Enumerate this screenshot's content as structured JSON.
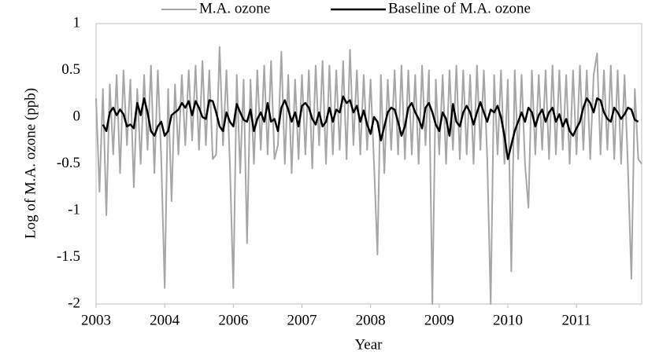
{
  "chart_data": {
    "type": "line",
    "x_label": "Year",
    "y_label": "Log of M.A. ozone (ppb)",
    "x": [
      0,
      0.05,
      0.1,
      0.15,
      0.2,
      0.25,
      0.3,
      0.35,
      0.4,
      0.45,
      0.5,
      0.55,
      0.6,
      0.65,
      0.7,
      0.75,
      0.8,
      0.85,
      0.9,
      0.95,
      1,
      1.05,
      1.1,
      1.15,
      1.2,
      1.25,
      1.3,
      1.35,
      1.4,
      1.45,
      1.5,
      1.55,
      1.6,
      1.65,
      1.7,
      1.75,
      1.8,
      1.85,
      1.9,
      1.95,
      2,
      2.05,
      2.1,
      2.15,
      2.2,
      2.25,
      2.3,
      2.35,
      2.4,
      2.45,
      2.5,
      2.55,
      2.6,
      2.65,
      2.7,
      2.75,
      2.8,
      2.85,
      2.9,
      2.95,
      3,
      3.05,
      3.1,
      3.15,
      3.2,
      3.25,
      3.3,
      3.35,
      3.4,
      3.45,
      3.5,
      3.55,
      3.6,
      3.65,
      3.7,
      3.75,
      3.8,
      3.85,
      3.9,
      3.95,
      4,
      4.05,
      4.1,
      4.15,
      4.2,
      4.25,
      4.3,
      4.35,
      4.4,
      4.45,
      4.5,
      4.55,
      4.6,
      4.65,
      4.7,
      4.75,
      4.8,
      4.85,
      4.9,
      4.95,
      5,
      5.05,
      5.1,
      5.15,
      5.2,
      5.25,
      5.3,
      5.35,
      5.4,
      5.45,
      5.5,
      5.55,
      5.6,
      5.65,
      5.7,
      5.75,
      5.8,
      5.85,
      5.9,
      5.95,
      6,
      6.05,
      6.1,
      6.15,
      6.2,
      6.25,
      6.3,
      6.35,
      6.4,
      6.45,
      6.5,
      6.55,
      6.6,
      6.65,
      6.7,
      6.75,
      6.8,
      6.85,
      6.9,
      6.95,
      7,
      7.05,
      7.1,
      7.15,
      7.2,
      7.25,
      7.3,
      7.35,
      7.4,
      7.45,
      7.5,
      7.55,
      7.6,
      7.65,
      7.7,
      7.75,
      7.8,
      7.85,
      7.9,
      7.95
    ],
    "series": [
      {
        "name": "M.A. ozone",
        "color": "#a6a6a6",
        "width": 2,
        "values": [
          0.2,
          -0.8,
          0.3,
          -1.05,
          0.35,
          -0.4,
          0.45,
          -0.6,
          0.5,
          -0.3,
          0.4,
          -0.75,
          0.3,
          -0.5,
          0.45,
          -0.35,
          0.55,
          -0.6,
          0.5,
          -0.45,
          -1.83,
          0.3,
          -0.9,
          0.35,
          -0.4,
          0.45,
          -0.3,
          0.5,
          -0.25,
          0.55,
          -0.35,
          0.6,
          -0.3,
          0.5,
          -0.45,
          -0.4,
          0.75,
          -0.3,
          0.5,
          -0.5,
          -1.83,
          0.45,
          -0.6,
          0.4,
          -1.35,
          0.4,
          -0.5,
          0.5,
          -0.35,
          0.55,
          -0.4,
          0.6,
          -0.45,
          -0.3,
          0.7,
          -0.5,
          0.45,
          -0.6,
          0.4,
          -0.45,
          0.45,
          -0.4,
          0.5,
          -0.55,
          0.55,
          -0.3,
          0.6,
          -0.5,
          0.55,
          -0.4,
          0.5,
          -0.35,
          0.6,
          -0.45,
          0.72,
          -0.3,
          0.5,
          -0.4,
          0.45,
          -0.35,
          0.4,
          -0.5,
          -1.47,
          0.45,
          -0.6,
          0.4,
          -0.35,
          0.5,
          -0.4,
          0.55,
          -0.45,
          0.5,
          -0.4,
          0.45,
          -0.5,
          0.55,
          -0.3,
          0.5,
          -2,
          0.4,
          -0.4,
          0.45,
          -0.5,
          0.5,
          -0.35,
          0.55,
          -0.45,
          0.5,
          -0.4,
          0.45,
          -0.5,
          0.55,
          -0.35,
          0.5,
          -0.45,
          -2,
          0.45,
          -0.4,
          0.5,
          -0.5,
          0.4,
          -1.65,
          0.5,
          -0.45,
          0.45,
          -0.5,
          -0.97,
          0.5,
          -0.4,
          0.45,
          -0.35,
          0.5,
          -0.45,
          0.55,
          -0.4,
          0.5,
          -0.35,
          0.45,
          -0.5,
          0.5,
          -0.4,
          0.55,
          -0.35,
          0.5,
          -0.45,
          0.45,
          0.68,
          -0.4,
          0.5,
          -0.35,
          0.55,
          -0.45,
          0.5,
          -0.5,
          0.45,
          -0.55,
          -1.73,
          0.3,
          -0.45,
          -0.5
        ]
      },
      {
        "name": "Baseline of M.A. ozone",
        "color": "#000000",
        "width": 2.5,
        "values": [
          null,
          null,
          -0.08,
          -0.15,
          0.05,
          0.1,
          0.02,
          0.08,
          0.03,
          -0.1,
          -0.08,
          -0.12,
          0.15,
          0.02,
          0.2,
          0.05,
          -0.15,
          -0.2,
          -0.1,
          -0.05,
          -0.2,
          -0.15,
          0.02,
          0.05,
          0.08,
          0.15,
          0.1,
          0.17,
          0.02,
          0.17,
          0.1,
          0,
          -0.02,
          0.18,
          0.17,
          0.05,
          -0.1,
          -0.15,
          0.05,
          -0.05,
          -0.1,
          0.14,
          0.05,
          -0.03,
          -0.05,
          0.08,
          -0.15,
          -0.02,
          0.05,
          -0.05,
          0.15,
          -0.05,
          -0.02,
          -0.15,
          0.1,
          0.18,
          0.08,
          -0.05,
          0.05,
          -0.1,
          0.12,
          0.15,
          0.1,
          -0.02,
          -0.08,
          0.05,
          -0.1,
          -0.05,
          0.1,
          -0.05,
          0.08,
          0.05,
          0.22,
          0.15,
          0.18,
          0.05,
          0.12,
          -0.05,
          0.07,
          -0.08,
          -0.18,
          0,
          -0.05,
          -0.25,
          -0.1,
          0.05,
          0.1,
          0.08,
          -0.05,
          -0.2,
          -0.1,
          0.1,
          0.15,
          0.05,
          -0.02,
          -0.12,
          0.1,
          0.15,
          0.05,
          -0.08,
          -0.15,
          0.05,
          -0.02,
          -0.2,
          0.14,
          -0.05,
          -0.1,
          0.05,
          0.12,
          0.05,
          -0.08,
          0.05,
          0.16,
          0.05,
          -0.05,
          0.08,
          0.05,
          0.12,
          0,
          -0.2,
          -0.45,
          -0.3,
          -0.15,
          -0.05,
          0.05,
          -0.05,
          0.1,
          0.05,
          -0.1,
          0.02,
          0.08,
          -0.05,
          0.05,
          0.1,
          -0.05,
          0.03,
          -0.1,
          -0.02,
          -0.15,
          -0.2,
          -0.12,
          -0.05,
          0.1,
          0.2,
          0.15,
          0.05,
          0.2,
          0.18,
          0.05,
          -0.02,
          -0.05,
          0.1,
          0.05,
          -0.02,
          0.03,
          0.1,
          0.08,
          -0.03,
          -0.05,
          null
        ]
      }
    ],
    "xlim": [
      0,
      7.95
    ],
    "xticks": [
      {
        "value": 0,
        "label": "2003"
      },
      {
        "value": 1,
        "label": "2004"
      },
      {
        "value": 2,
        "label": "2006"
      },
      {
        "value": 3,
        "label": "2007"
      },
      {
        "value": 4,
        "label": "2008"
      },
      {
        "value": 5,
        "label": "2009"
      },
      {
        "value": 6,
        "label": "2010"
      },
      {
        "value": 7,
        "label": "2011"
      }
    ],
    "ylim": [
      -2,
      1
    ],
    "yticks": [
      -2,
      -1.5,
      -1,
      -0.5,
      0,
      0.5,
      1
    ],
    "legend": "top",
    "grid": false
  }
}
